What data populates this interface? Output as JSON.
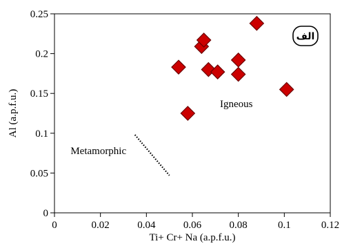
{
  "chart_data": {
    "type": "scatter",
    "xlabel": "Ti+ Cr+ Na (a.p.f.u.)",
    "ylabel": "Al (a.p.f.u.)",
    "xlim": [
      0,
      0.12
    ],
    "ylim": [
      0,
      0.25
    ],
    "x_ticks": [
      0,
      0.02,
      0.04,
      0.06,
      0.08,
      0.1,
      0.12
    ],
    "x_tick_labels": [
      "0",
      "0.02",
      "0.04",
      "0.06",
      "0.08",
      "0.1",
      "0.12"
    ],
    "y_ticks": [
      0,
      0.05,
      0.1,
      0.15,
      0.2,
      0.25
    ],
    "y_tick_labels": [
      "0",
      "0.05",
      "0.1",
      "0.15",
      "0.2",
      "0.25"
    ],
    "grid": false,
    "marker": "diamond",
    "marker_color": "#cc0000",
    "marker_edge_color": "#6b0000",
    "series": [
      {
        "points": [
          {
            "x": 0.054,
            "y": 0.183
          },
          {
            "x": 0.058,
            "y": 0.125
          },
          {
            "x": 0.064,
            "y": 0.209
          },
          {
            "x": 0.065,
            "y": 0.217
          },
          {
            "x": 0.067,
            "y": 0.18
          },
          {
            "x": 0.071,
            "y": 0.177
          },
          {
            "x": 0.08,
            "y": 0.192
          },
          {
            "x": 0.08,
            "y": 0.174
          },
          {
            "x": 0.088,
            "y": 0.238
          },
          {
            "x": 0.101,
            "y": 0.155
          }
        ]
      }
    ],
    "boundary_line": {
      "style": "dotted",
      "from": {
        "x": 0.035,
        "y": 0.098
      },
      "to": {
        "x": 0.05,
        "y": 0.047
      }
    },
    "annotations": [
      {
        "text": "Igneous",
        "x": 0.072,
        "y": 0.133
      },
      {
        "text": "Metamorphic",
        "x": 0.007,
        "y": 0.074
      },
      {
        "text": "الف",
        "placement": "top-right",
        "boxed": true
      }
    ]
  }
}
